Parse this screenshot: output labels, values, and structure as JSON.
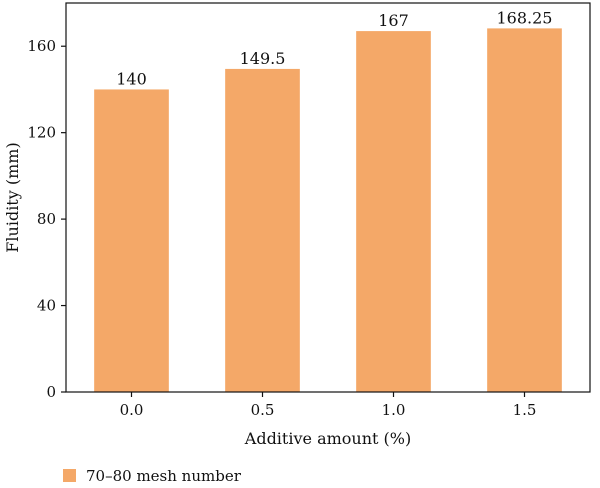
{
  "chart_data": {
    "type": "bar",
    "categories": [
      "0.0",
      "0.5",
      "1.0",
      "1.5"
    ],
    "series": [
      {
        "name": "70–80 mesh number",
        "values": [
          140,
          149.5,
          167,
          168.25
        ],
        "labels": [
          "140",
          "149.5",
          "167",
          "168.25"
        ],
        "color": "#f4a868"
      }
    ],
    "xlabel": "Additive amount (%)",
    "ylabel": "Fluidity (mm)",
    "ylim": [
      0,
      180
    ],
    "yticks": [
      0,
      40,
      80,
      120,
      160
    ],
    "grid": false,
    "legend_position": "bottom-left"
  }
}
